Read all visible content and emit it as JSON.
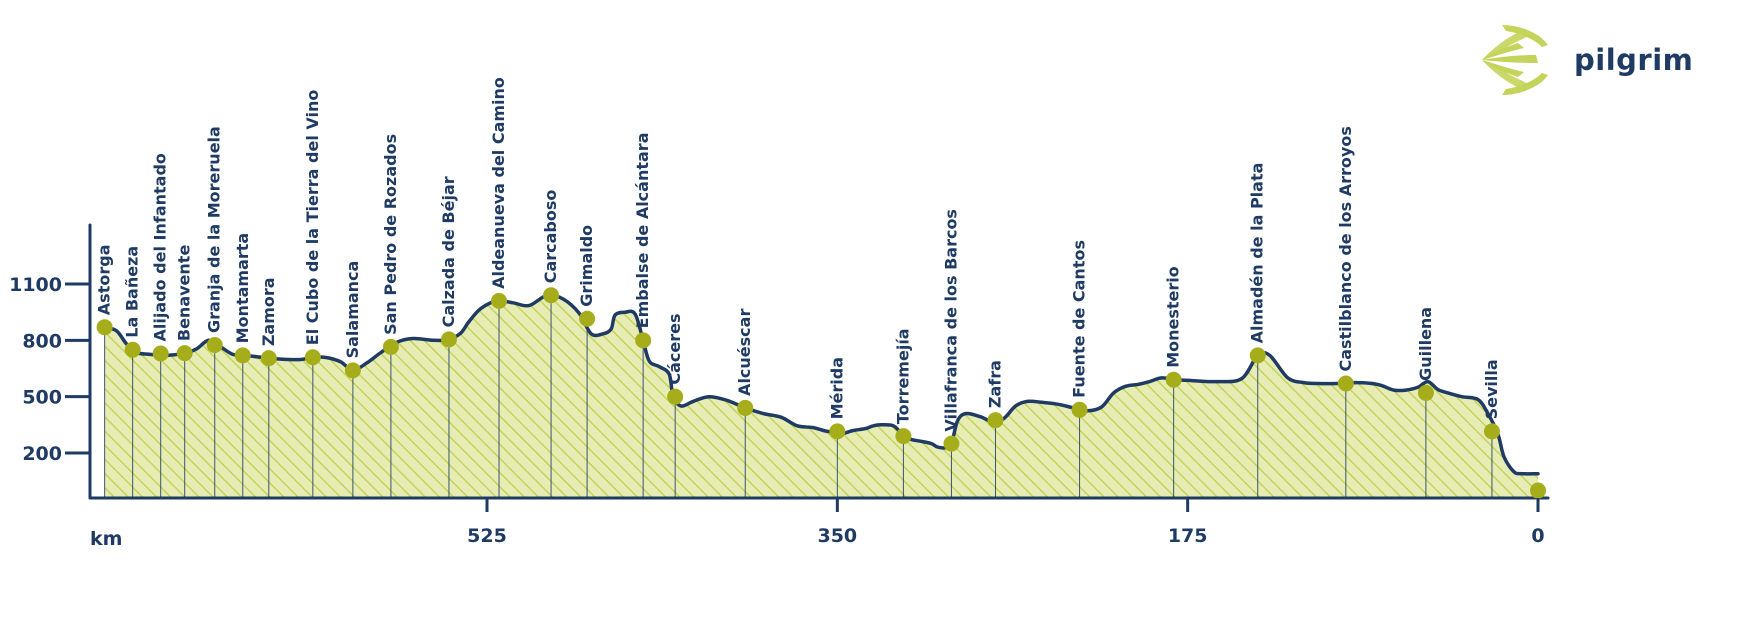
{
  "brand": {
    "name": "pilgrim",
    "icon": "scallop-shell-icon"
  },
  "colors": {
    "line": "#1f3b63",
    "fill": "#e6ecb4",
    "hatch": "#c4d45a",
    "marker": "#a6ad1a",
    "text": "#1f3b63"
  },
  "chart_data": {
    "type": "area",
    "title": "",
    "xlabel": "km",
    "ylabel": "",
    "x_reversed": true,
    "xlim": [
      0,
      720
    ],
    "ylim": [
      0,
      1350
    ],
    "x_ticks": [
      525,
      350,
      175,
      0
    ],
    "y_ticks": [
      200,
      500,
      800,
      1100
    ],
    "profile": [
      [
        716,
        870
      ],
      [
        710,
        850
      ],
      [
        705,
        780
      ],
      [
        700,
        735
      ],
      [
        694,
        726
      ],
      [
        685,
        720
      ],
      [
        676,
        732
      ],
      [
        670,
        755
      ],
      [
        664,
        800
      ],
      [
        658,
        765
      ],
      [
        652,
        725
      ],
      [
        646,
        720
      ],
      [
        638,
        710
      ],
      [
        628,
        700
      ],
      [
        618,
        698
      ],
      [
        612,
        710
      ],
      [
        605,
        708
      ],
      [
        598,
        685
      ],
      [
        592,
        640
      ],
      [
        585,
        680
      ],
      [
        578,
        735
      ],
      [
        570,
        790
      ],
      [
        562,
        810
      ],
      [
        552,
        800
      ],
      [
        544,
        805
      ],
      [
        538,
        840
      ],
      [
        534,
        900
      ],
      [
        528,
        970
      ],
      [
        520,
        1010
      ],
      [
        512,
        1000
      ],
      [
        504,
        985
      ],
      [
        495,
        1040
      ],
      [
        487,
        1020
      ],
      [
        479,
        945
      ],
      [
        473,
        835
      ],
      [
        467,
        835
      ],
      [
        463,
        860
      ],
      [
        461,
        935
      ],
      [
        456,
        950
      ],
      [
        451,
        940
      ],
      [
        447,
        800
      ],
      [
        444,
        690
      ],
      [
        439,
        660
      ],
      [
        434,
        620
      ],
      [
        432,
        500
      ],
      [
        428,
        450
      ],
      [
        422,
        475
      ],
      [
        414,
        500
      ],
      [
        405,
        480
      ],
      [
        396,
        440
      ],
      [
        387,
        410
      ],
      [
        378,
        390
      ],
      [
        370,
        345
      ],
      [
        362,
        335
      ],
      [
        355,
        315
      ],
      [
        350,
        315
      ],
      [
        347,
        305
      ],
      [
        342,
        320
      ],
      [
        336,
        330
      ],
      [
        332,
        345
      ],
      [
        328,
        350
      ],
      [
        322,
        345
      ],
      [
        318,
        305
      ],
      [
        314,
        275
      ],
      [
        308,
        262
      ],
      [
        303,
        250
      ],
      [
        300,
        232
      ],
      [
        296,
        228
      ],
      [
        293,
        250
      ],
      [
        290,
        370
      ],
      [
        286,
        410
      ],
      [
        279,
        395
      ],
      [
        273,
        370
      ],
      [
        267,
        382
      ],
      [
        261,
        450
      ],
      [
        255,
        475
      ],
      [
        248,
        470
      ],
      [
        240,
        460
      ],
      [
        232,
        440
      ],
      [
        225,
        425
      ],
      [
        218,
        445
      ],
      [
        212,
        520
      ],
      [
        206,
        555
      ],
      [
        200,
        565
      ],
      [
        194,
        580
      ],
      [
        188,
        600
      ],
      [
        180,
        590
      ],
      [
        172,
        585
      ],
      [
        160,
        580
      ],
      [
        148,
        596
      ],
      [
        140,
        720
      ],
      [
        134,
        720
      ],
      [
        125,
        600
      ],
      [
        117,
        575
      ],
      [
        110,
        570
      ],
      [
        100,
        570
      ],
      [
        90,
        575
      ],
      [
        80,
        565
      ],
      [
        72,
        535
      ],
      [
        66,
        535
      ],
      [
        60,
        550
      ],
      [
        55,
        580
      ],
      [
        50,
        538
      ],
      [
        45,
        520
      ],
      [
        38,
        500
      ],
      [
        30,
        485
      ],
      [
        25,
        410
      ],
      [
        20,
        300
      ],
      [
        17,
        180
      ],
      [
        12,
        100
      ],
      [
        8,
        90
      ],
      [
        0,
        90
      ]
    ],
    "stops": [
      {
        "name": "Astorga",
        "x": 716,
        "y": 870
      },
      {
        "name": "La Bañeza",
        "x": 702,
        "y": 750
      },
      {
        "name": "Alijado del Infantado",
        "x": 688,
        "y": 730
      },
      {
        "name": "Benavente",
        "x": 676,
        "y": 732
      },
      {
        "name": "Granja de la Moreruela",
        "x": 661,
        "y": 775
      },
      {
        "name": "Montamarta",
        "x": 647,
        "y": 720
      },
      {
        "name": "Zamora",
        "x": 634,
        "y": 705
      },
      {
        "name": "El Cubo de la Tierra del Vino",
        "x": 612,
        "y": 710
      },
      {
        "name": "Salamanca",
        "x": 592,
        "y": 640
      },
      {
        "name": "San Pedro de Rozados",
        "x": 573,
        "y": 765
      },
      {
        "name": "Calzada de Béjar",
        "x": 544,
        "y": 805
      },
      {
        "name": "Aldeanueva del Camino",
        "x": 519,
        "y": 1010
      },
      {
        "name": "Carcaboso",
        "x": 493,
        "y": 1040
      },
      {
        "name": "Grimaldo",
        "x": 475,
        "y": 915
      },
      {
        "name": "Embalse de Alcántara",
        "x": 447,
        "y": 800
      },
      {
        "name": "Cáceres",
        "x": 431,
        "y": 500
      },
      {
        "name": "Alcuéscar",
        "x": 396,
        "y": 440
      },
      {
        "name": "Mérida",
        "x": 350,
        "y": 315
      },
      {
        "name": "Torremejía",
        "x": 317,
        "y": 290
      },
      {
        "name": "Villafranca de los Barcos",
        "x": 293,
        "y": 250
      },
      {
        "name": "Zafra",
        "x": 271,
        "y": 375
      },
      {
        "name": "Fuente de Cantos",
        "x": 229,
        "y": 430
      },
      {
        "name": "Monesterio",
        "x": 182,
        "y": 590
      },
      {
        "name": "Almadén de la Plata",
        "x": 140,
        "y": 720
      },
      {
        "name": "Castilblanco de los Arroyos",
        "x": 96,
        "y": 570
      },
      {
        "name": "Guillena",
        "x": 56,
        "y": 520
      },
      {
        "name": "Sevilla",
        "x": 23,
        "y": 315
      },
      {
        "name": "",
        "x": 0,
        "y": 0
      }
    ]
  }
}
